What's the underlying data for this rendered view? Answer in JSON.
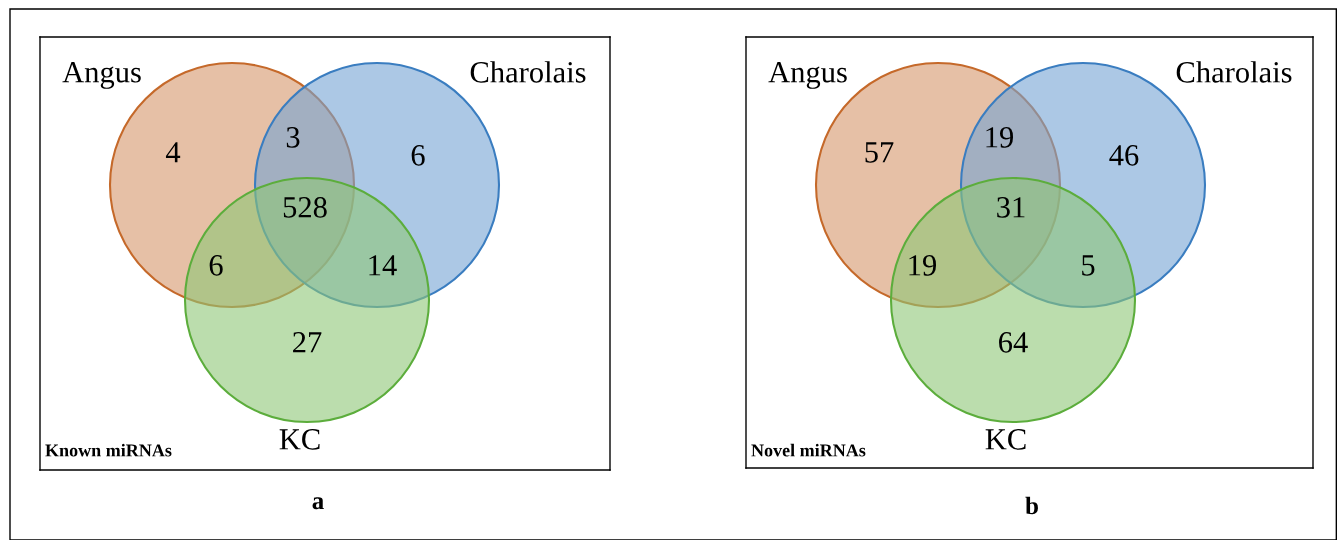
{
  "chart_data": [
    {
      "type": "other",
      "title": "a",
      "annotations": [
        "Angus",
        "Charolais",
        "KC",
        "Known miRNAs"
      ],
      "categories": [
        null,
        null,
        null,
        null,
        null,
        null,
        null
      ],
      "values": [
        4,
        3,
        6,
        528,
        6,
        14,
        27
      ],
      "data_labels": true
    },
    {
      "type": "other",
      "title": "b",
      "annotations": [
        "Angus",
        "Charolais",
        "KC",
        "Novel miRNAs"
      ],
      "categories": [
        null,
        null,
        null,
        null,
        null,
        null,
        null
      ],
      "values": [
        57,
        19,
        46,
        31,
        19,
        5,
        64
      ],
      "data_labels": true
    }
  ]
}
